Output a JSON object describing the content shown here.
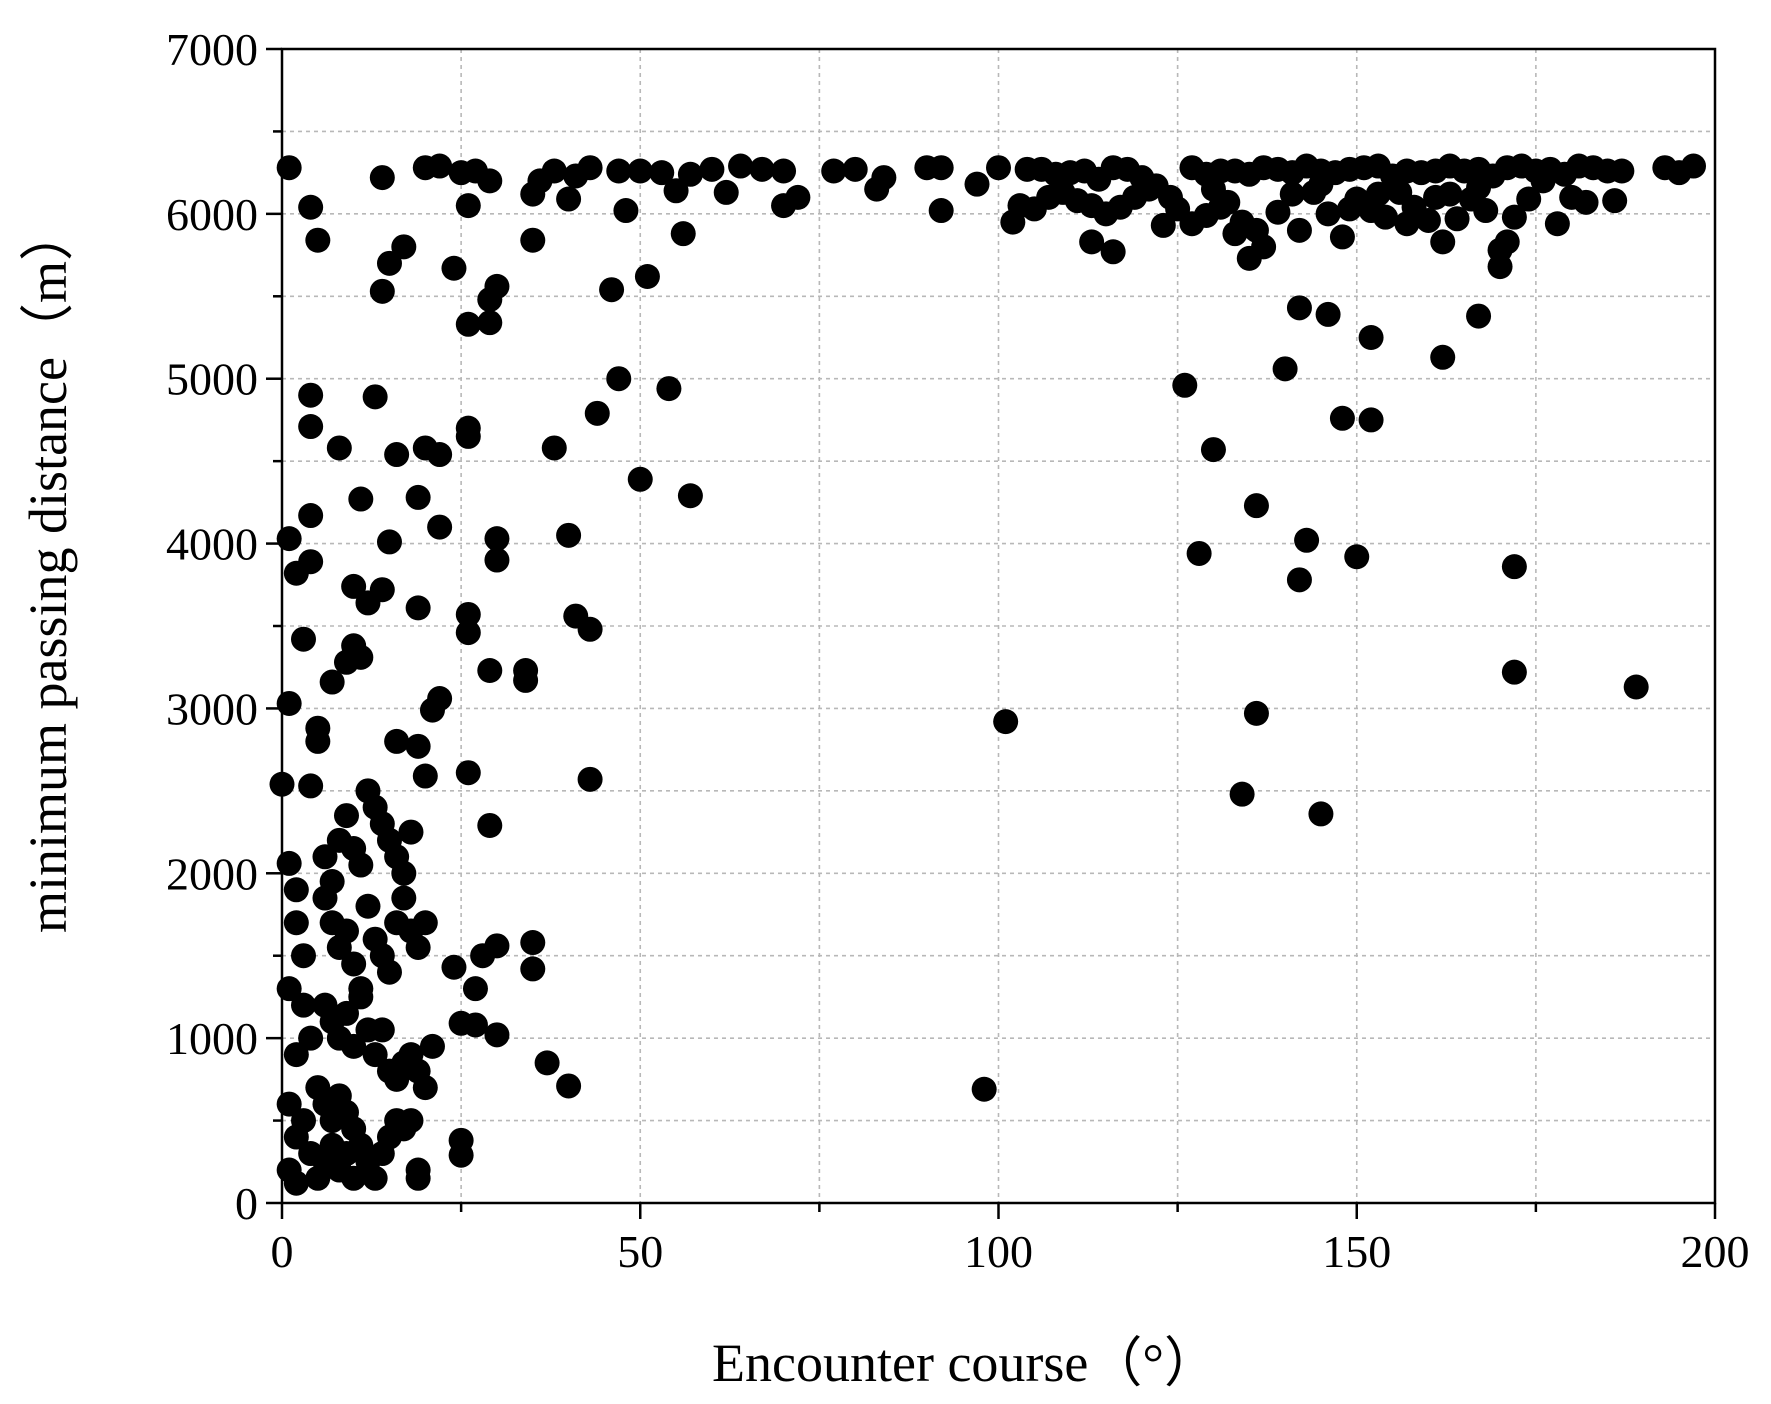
{
  "chart_data": {
    "type": "scatter",
    "xlabel": "Encounter course（°）",
    "ylabel": "minimum passing distance（m）",
    "xlim": [
      0,
      200
    ],
    "ylim": [
      0,
      7000
    ],
    "x_ticks": [
      0,
      50,
      100,
      150,
      200
    ],
    "y_ticks": [
      0,
      1000,
      2000,
      3000,
      4000,
      5000,
      6000,
      7000
    ],
    "x_tick_labels": [
      "0",
      "50",
      "100",
      "150",
      "200"
    ],
    "y_tick_labels": [
      "0",
      "1000",
      "2000",
      "3000",
      "4000",
      "5000",
      "6000",
      "7000"
    ],
    "grid": true,
    "legend": "none",
    "marker_color": "#000000",
    "series": [
      {
        "points": [
          [
            1,
            6280
          ],
          [
            4,
            6040
          ],
          [
            5,
            5840
          ],
          [
            14,
            6220
          ],
          [
            15,
            5700
          ],
          [
            14,
            5530
          ],
          [
            17,
            5800
          ],
          [
            20,
            6280
          ],
          [
            22,
            6290
          ],
          [
            25,
            6250
          ],
          [
            27,
            6260
          ],
          [
            29,
            6200
          ],
          [
            26,
            6050
          ],
          [
            24,
            5670
          ],
          [
            29,
            5480
          ],
          [
            30,
            5560
          ],
          [
            26,
            5330
          ],
          [
            29,
            5340
          ],
          [
            35,
            6120
          ],
          [
            36,
            6200
          ],
          [
            38,
            6260
          ],
          [
            41,
            6230
          ],
          [
            43,
            6280
          ],
          [
            40,
            6090
          ],
          [
            35,
            5840
          ],
          [
            47,
            6260
          ],
          [
            50,
            6260
          ],
          [
            53,
            6250
          ],
          [
            55,
            6140
          ],
          [
            57,
            6240
          ],
          [
            60,
            6270
          ],
          [
            62,
            6130
          ],
          [
            64,
            6290
          ],
          [
            67,
            6270
          ],
          [
            70,
            6260
          ],
          [
            72,
            6100
          ],
          [
            77,
            6260
          ],
          [
            80,
            6270
          ],
          [
            84,
            6220
          ],
          [
            83,
            6150
          ],
          [
            90,
            6280
          ],
          [
            92,
            6280
          ],
          [
            97,
            6180
          ],
          [
            100,
            6280
          ],
          [
            48,
            6020
          ],
          [
            46,
            5540
          ],
          [
            51,
            5620
          ],
          [
            56,
            5880
          ],
          [
            70,
            6050
          ],
          [
            92,
            6020
          ],
          [
            104,
            6270
          ],
          [
            106,
            6270
          ],
          [
            108,
            6240
          ],
          [
            110,
            6250
          ],
          [
            112,
            6260
          ],
          [
            114,
            6210
          ],
          [
            116,
            6280
          ],
          [
            118,
            6270
          ],
          [
            120,
            6220
          ],
          [
            122,
            6170
          ],
          [
            124,
            6100
          ],
          [
            109,
            6130
          ],
          [
            111,
            6080
          ],
          [
            113,
            6050
          ],
          [
            115,
            6000
          ],
          [
            117,
            6040
          ],
          [
            119,
            6100
          ],
          [
            121,
            6150
          ],
          [
            107,
            6100
          ],
          [
            105,
            6030
          ],
          [
            103,
            6050
          ],
          [
            102,
            5950
          ],
          [
            123,
            5930
          ],
          [
            113,
            5830
          ],
          [
            116,
            5770
          ],
          [
            125,
            6030
          ],
          [
            127,
            6280
          ],
          [
            129,
            6240
          ],
          [
            131,
            6260
          ],
          [
            133,
            6260
          ],
          [
            135,
            6240
          ],
          [
            137,
            6280
          ],
          [
            139,
            6270
          ],
          [
            141,
            6250
          ],
          [
            143,
            6290
          ],
          [
            145,
            6260
          ],
          [
            147,
            6250
          ],
          [
            149,
            6270
          ],
          [
            151,
            6280
          ],
          [
            153,
            6290
          ],
          [
            155,
            6230
          ],
          [
            157,
            6260
          ],
          [
            159,
            6250
          ],
          [
            161,
            6260
          ],
          [
            163,
            6290
          ],
          [
            165,
            6260
          ],
          [
            167,
            6270
          ],
          [
            169,
            6230
          ],
          [
            171,
            6280
          ],
          [
            173,
            6290
          ],
          [
            175,
            6260
          ],
          [
            177,
            6270
          ],
          [
            179,
            6240
          ],
          [
            181,
            6290
          ],
          [
            183,
            6280
          ],
          [
            185,
            6260
          ],
          [
            187,
            6260
          ],
          [
            193,
            6280
          ],
          [
            195,
            6250
          ],
          [
            197,
            6290
          ],
          [
            130,
            6150
          ],
          [
            132,
            6070
          ],
          [
            134,
            5950
          ],
          [
            136,
            5900
          ],
          [
            135,
            5730
          ],
          [
            137,
            5800
          ],
          [
            142,
            5900
          ],
          [
            144,
            6130
          ],
          [
            146,
            6000
          ],
          [
            148,
            5860
          ],
          [
            150,
            6090
          ],
          [
            152,
            6020
          ],
          [
            154,
            5980
          ],
          [
            156,
            6130
          ],
          [
            158,
            6040
          ],
          [
            160,
            5960
          ],
          [
            162,
            5830
          ],
          [
            164,
            5970
          ],
          [
            166,
            6090
          ],
          [
            168,
            6020
          ],
          [
            170,
            5780
          ],
          [
            170,
            5680
          ],
          [
            171,
            5830
          ],
          [
            172,
            5980
          ],
          [
            174,
            6090
          ],
          [
            178,
            5940
          ],
          [
            180,
            6100
          ],
          [
            182,
            6070
          ],
          [
            186,
            6080
          ],
          [
            127,
            5940
          ],
          [
            129,
            5990
          ],
          [
            131,
            6040
          ],
          [
            133,
            5880
          ],
          [
            139,
            6010
          ],
          [
            141,
            6120
          ],
          [
            145,
            6180
          ],
          [
            149,
            6030
          ],
          [
            153,
            6120
          ],
          [
            157,
            5940
          ],
          [
            161,
            6100
          ],
          [
            163,
            6120
          ],
          [
            167,
            6160
          ],
          [
            176,
            6200
          ],
          [
            142,
            5430
          ],
          [
            146,
            5390
          ],
          [
            152,
            5250
          ],
          [
            162,
            5130
          ],
          [
            167,
            5380
          ],
          [
            140,
            5060
          ],
          [
            126,
            4960
          ],
          [
            130,
            4570
          ],
          [
            148,
            4760
          ],
          [
            152,
            4750
          ],
          [
            136,
            4230
          ],
          [
            143,
            4020
          ],
          [
            142,
            3780
          ],
          [
            150,
            3920
          ],
          [
            128,
            3940
          ],
          [
            172,
            3860
          ],
          [
            172,
            3220
          ],
          [
            189,
            3130
          ],
          [
            136,
            2970
          ],
          [
            134,
            2480
          ],
          [
            145,
            2360
          ],
          [
            101,
            2920
          ],
          [
            98,
            690
          ],
          [
            1,
            4030
          ],
          [
            2,
            3820
          ],
          [
            4,
            3890
          ],
          [
            4,
            4170
          ],
          [
            4,
            4900
          ],
          [
            4,
            4710
          ],
          [
            8,
            4580
          ],
          [
            10,
            3740
          ],
          [
            11,
            4270
          ],
          [
            12,
            3640
          ],
          [
            13,
            4890
          ],
          [
            14,
            3720
          ],
          [
            15,
            4010
          ],
          [
            16,
            4540
          ],
          [
            19,
            4280
          ],
          [
            19,
            3610
          ],
          [
            20,
            4580
          ],
          [
            22,
            4540
          ],
          [
            22,
            4100
          ],
          [
            26,
            4700
          ],
          [
            26,
            4650
          ],
          [
            30,
            4030
          ],
          [
            30,
            3900
          ],
          [
            38,
            4580
          ],
          [
            40,
            4050
          ],
          [
            44,
            4790
          ],
          [
            47,
            5000
          ],
          [
            50,
            4390
          ],
          [
            54,
            4940
          ],
          [
            57,
            4290
          ],
          [
            41,
            3560
          ],
          [
            43,
            3480
          ],
          [
            34,
            3170
          ],
          [
            34,
            3230
          ],
          [
            29,
            3230
          ],
          [
            26,
            3570
          ],
          [
            26,
            3460
          ],
          [
            21,
            2990
          ],
          [
            22,
            3060
          ],
          [
            9,
            3280
          ],
          [
            10,
            3380
          ],
          [
            11,
            3310
          ],
          [
            7,
            3160
          ],
          [
            3,
            3420
          ],
          [
            1,
            3030
          ],
          [
            5,
            2880
          ],
          [
            5,
            2800
          ],
          [
            4,
            2530
          ],
          [
            0,
            2540
          ],
          [
            16,
            2800
          ],
          [
            19,
            2770
          ],
          [
            20,
            2590
          ],
          [
            26,
            2610
          ],
          [
            43,
            2570
          ],
          [
            29,
            2290
          ],
          [
            1,
            2060
          ],
          [
            2,
            1900
          ],
          [
            2,
            1700
          ],
          [
            3,
            1500
          ],
          [
            1,
            1300
          ],
          [
            3,
            1200
          ],
          [
            4,
            1000
          ],
          [
            2,
            900
          ],
          [
            5,
            700
          ],
          [
            1,
            600
          ],
          [
            3,
            500
          ],
          [
            2,
            400
          ],
          [
            4,
            300
          ],
          [
            1,
            200
          ],
          [
            5,
            150
          ],
          [
            2,
            120
          ],
          [
            6,
            2100
          ],
          [
            7,
            1950
          ],
          [
            8,
            2200
          ],
          [
            9,
            2350
          ],
          [
            10,
            2150
          ],
          [
            11,
            2050
          ],
          [
            12,
            2500
          ],
          [
            13,
            2400
          ],
          [
            14,
            2300
          ],
          [
            15,
            2200
          ],
          [
            16,
            2100
          ],
          [
            17,
            2000
          ],
          [
            18,
            2250
          ],
          [
            6,
            1850
          ],
          [
            7,
            1700
          ],
          [
            8,
            1550
          ],
          [
            9,
            1650
          ],
          [
            10,
            1450
          ],
          [
            11,
            1300
          ],
          [
            12,
            1800
          ],
          [
            13,
            1600
          ],
          [
            14,
            1500
          ],
          [
            15,
            1400
          ],
          [
            16,
            1700
          ],
          [
            17,
            1850
          ],
          [
            18,
            1650
          ],
          [
            19,
            1550
          ],
          [
            20,
            1700
          ],
          [
            6,
            1200
          ],
          [
            7,
            1100
          ],
          [
            8,
            1000
          ],
          [
            9,
            1150
          ],
          [
            10,
            950
          ],
          [
            11,
            1250
          ],
          [
            12,
            1050
          ],
          [
            13,
            900
          ],
          [
            14,
            1050
          ],
          [
            15,
            800
          ],
          [
            16,
            750
          ],
          [
            17,
            850
          ],
          [
            18,
            900
          ],
          [
            19,
            800
          ],
          [
            20,
            700
          ],
          [
            21,
            950
          ],
          [
            6,
            600
          ],
          [
            7,
            500
          ],
          [
            8,
            650
          ],
          [
            9,
            550
          ],
          [
            10,
            450
          ],
          [
            11,
            350
          ],
          [
            12,
            250
          ],
          [
            13,
            150
          ],
          [
            14,
            300
          ],
          [
            15,
            400
          ],
          [
            16,
            500
          ],
          [
            17,
            450
          ],
          [
            18,
            500
          ],
          [
            19,
            200
          ],
          [
            19,
            150
          ],
          [
            6,
            250
          ],
          [
            7,
            350
          ],
          [
            8,
            200
          ],
          [
            9,
            300
          ],
          [
            10,
            150
          ],
          [
            24,
            1430
          ],
          [
            25,
            1090
          ],
          [
            27,
            1080
          ],
          [
            27,
            1300
          ],
          [
            28,
            1500
          ],
          [
            30,
            1560
          ],
          [
            30,
            1020
          ],
          [
            35,
            1580
          ],
          [
            35,
            1420
          ],
          [
            37,
            850
          ],
          [
            40,
            710
          ],
          [
            25,
            380
          ],
          [
            25,
            290
          ]
        ]
      }
    ]
  }
}
